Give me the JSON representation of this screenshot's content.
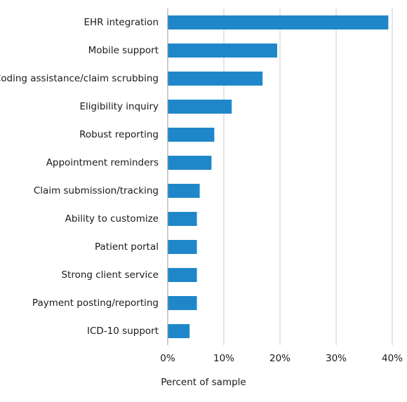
{
  "chart_data": {
    "type": "bar",
    "orientation": "horizontal",
    "title": "",
    "xlabel": "Percent of sample",
    "ylabel": "",
    "categories": [
      "EHR integration",
      "Mobile support",
      "Coding assistance/claim scrubbing",
      "Eligibility inquiry",
      "Robust reporting",
      "Appointment reminders",
      "Claim submission/tracking",
      "Ability to customize",
      "Patient portal",
      "Strong client service",
      "Payment posting/reporting",
      "ICD-10 support"
    ],
    "values": [
      39.3,
      19.5,
      16.9,
      11.4,
      8.3,
      7.8,
      5.7,
      5.2,
      5.2,
      5.2,
      5.2,
      3.9
    ],
    "xlim": [
      0,
      40
    ],
    "xticks": [
      0,
      10,
      20,
      30,
      40
    ],
    "xtick_labels": [
      "0%",
      "10%",
      "20%",
      "30%",
      "40%"
    ],
    "grid": "vertical",
    "legend": "none",
    "bar_color": "#1f87c9",
    "grid_color": "#cccccc",
    "axis_color": "#999999"
  }
}
